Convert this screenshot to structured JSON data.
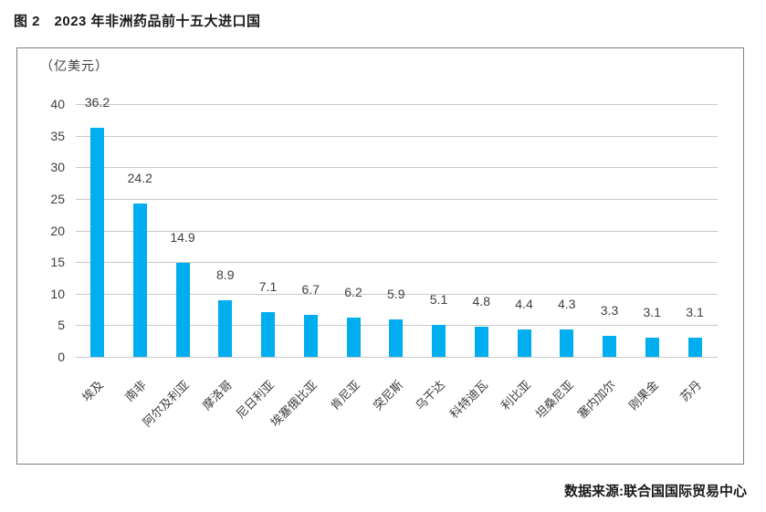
{
  "page": {
    "figure_label": "图 2",
    "title": "图 2　2023 年非洲药品前十五大进口国",
    "source": "数据来源:联合国国际贸易中心"
  },
  "chart_data": {
    "type": "bar",
    "title": "2023 年非洲药品前十五大进口国",
    "unit_label": "（亿美元）",
    "categories": [
      "埃及",
      "南非",
      "阿尔及利亚",
      "摩洛哥",
      "尼日利亚",
      "埃塞俄比亚",
      "肯尼亚",
      "突尼斯",
      "乌干达",
      "科特迪瓦",
      "利比亚",
      "坦桑尼亚",
      "塞内加尔",
      "刚果金",
      "苏丹"
    ],
    "values": [
      36.2,
      24.2,
      14.9,
      8.9,
      7.1,
      6.7,
      6.2,
      5.9,
      5.1,
      4.8,
      4.4,
      4.3,
      3.3,
      3.1,
      3.1
    ],
    "xlabel": "",
    "ylabel": "亿美元",
    "ylim": [
      0,
      40
    ],
    "yticks": [
      0,
      5,
      10,
      15,
      20,
      25,
      30,
      35,
      40
    ],
    "grid": "horizontal",
    "legend": "none",
    "data_labels": "above-bars",
    "category_label_rotation_deg": -45,
    "colors": {
      "bar": "#00aeef",
      "gridline": "#c9c9c9",
      "box_border": "#7f7f7f",
      "axis_text": "#3d3d3d",
      "title_text": "#1a1a1a"
    }
  }
}
